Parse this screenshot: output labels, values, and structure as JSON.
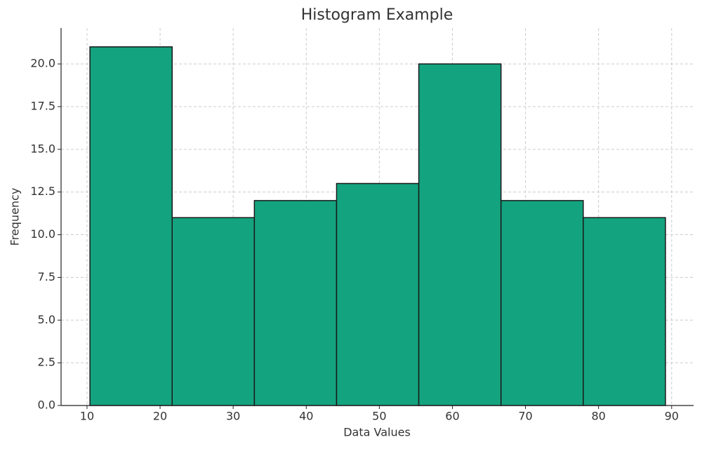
{
  "chart_data": {
    "type": "histogram",
    "title": "Histogram Example",
    "x_label": "Data Values",
    "y_label": "Frequency",
    "bins": [
      10.4,
      21.65,
      32.9,
      44.15,
      55.4,
      66.65,
      77.9,
      89.15
    ],
    "values": [
      21,
      11,
      12,
      13,
      20,
      12,
      11
    ],
    "color": "#13a37f",
    "edge_color": "#1a1a1a",
    "xlim": [
      6.45,
      93
    ],
    "ylim": [
      0,
      22.1
    ],
    "xticks": [
      10,
      20,
      30,
      40,
      50,
      60,
      70,
      80,
      90
    ],
    "yticks": [
      {
        "value": 0,
        "label": "0.0"
      },
      2.5,
      {
        "value": 5,
        "label": "5.0"
      },
      7.5,
      {
        "value": 10,
        "label": "10.0"
      },
      12.5,
      {
        "value": 15,
        "label": "15.0"
      },
      17.5,
      {
        "value": 20,
        "label": "20.0"
      }
    ],
    "grid": true
  }
}
